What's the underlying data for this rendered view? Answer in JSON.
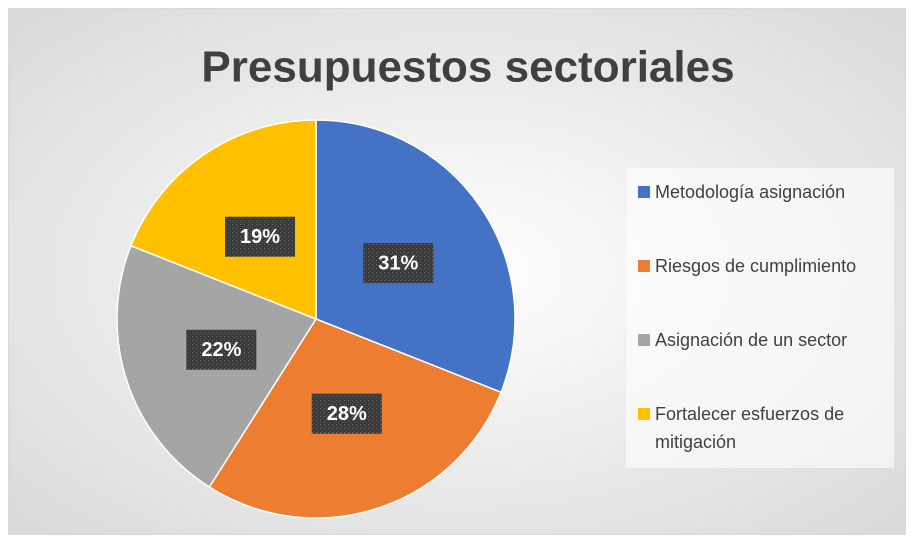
{
  "chart_data": {
    "type": "pie",
    "title": "Presupuestos sectoriales",
    "categories": [
      "Metodología asignación",
      "Riesgos de cumplimiento",
      "Asignación de un sector",
      "Fortalecer esfuerzos de mitigación"
    ],
    "values": [
      31,
      28,
      22,
      19
    ],
    "value_labels": [
      "31%",
      "28%",
      "22%",
      "19%"
    ],
    "colors": [
      "#4472c4",
      "#ed7d31",
      "#a5a5a5",
      "#ffc000"
    ],
    "legend": "right"
  }
}
